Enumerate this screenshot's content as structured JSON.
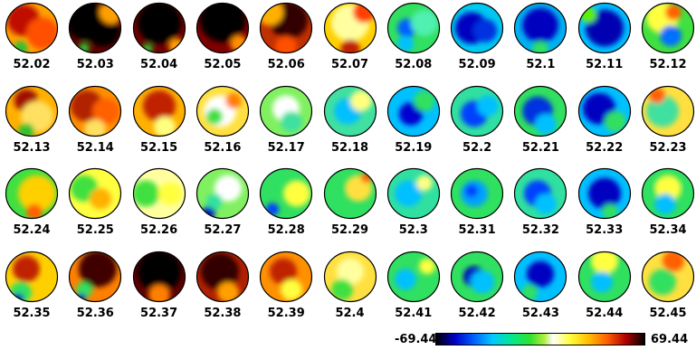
{
  "rows": [
    [
      "52.02",
      "52.03",
      "52.04",
      "52.05",
      "52.06",
      "52.07",
      "52.08",
      "52.09",
      "52.1",
      "52.11",
      "52.12"
    ],
    [
      "52.13",
      "52.14",
      "52.15",
      "52.16",
      "52.17",
      "52.18",
      "52.19",
      "52.2",
      "52.21",
      "52.22",
      "52.23"
    ],
    [
      "52.24",
      "52.25",
      "52.26",
      "52.27",
      "52.28",
      "52.29",
      "52.3",
      "52.31",
      "52.32",
      "52.33",
      "52.34"
    ],
    [
      "52.35",
      "52.36",
      "52.37",
      "52.38",
      "52.39",
      "52.4",
      "52.41",
      "52.42",
      "52.43",
      "52.44",
      "52.45"
    ]
  ],
  "maps": [
    [
      {
        "bg": "#ffa000",
        "b": [
          [
            "#c01000",
            0.35,
            0.35,
            0.3
          ],
          [
            "#ff5000",
            0.7,
            0.6,
            0.3
          ],
          [
            "#30c030",
            0.3,
            0.88,
            0.13
          ]
        ]
      },
      {
        "bg": "#600000",
        "b": [
          [
            "#000000",
            0.35,
            0.35,
            0.38
          ],
          [
            "#000000",
            0.65,
            0.55,
            0.3
          ],
          [
            "#ffa000",
            0.8,
            0.2,
            0.22
          ],
          [
            "#30c030",
            0.3,
            0.88,
            0.1
          ]
        ]
      },
      {
        "bg": "#700000",
        "b": [
          [
            "#000000",
            0.5,
            0.4,
            0.4
          ],
          [
            "#ffa000",
            0.82,
            0.85,
            0.15
          ],
          [
            "#30c030",
            0.28,
            0.9,
            0.1
          ]
        ]
      },
      {
        "bg": "#800000",
        "b": [
          [
            "#000000",
            0.5,
            0.35,
            0.42
          ],
          [
            "#ff9000",
            0.8,
            0.8,
            0.16
          ]
        ]
      },
      {
        "bg": "#c03000",
        "b": [
          [
            "#300000",
            0.55,
            0.35,
            0.35
          ],
          [
            "#ffb000",
            0.2,
            0.2,
            0.25
          ],
          [
            "#ff5000",
            0.5,
            0.85,
            0.2
          ]
        ]
      },
      {
        "bg": "#ffd000",
        "b": [
          [
            "#ffffa0",
            0.5,
            0.4,
            0.35
          ],
          [
            "#c02000",
            0.5,
            0.9,
            0.18
          ],
          [
            "#ff4000",
            0.75,
            0.2,
            0.2
          ]
        ]
      },
      {
        "bg": "#30e060",
        "b": [
          [
            "#0060ff",
            0.38,
            0.5,
            0.18
          ],
          [
            "#50f0b0",
            0.7,
            0.4,
            0.25
          ],
          [
            "#00c0ff",
            0.35,
            0.8,
            0.15
          ]
        ]
      },
      {
        "bg": "#00c8f0",
        "b": [
          [
            "#0000c0",
            0.4,
            0.5,
            0.3
          ],
          [
            "#0030e0",
            0.65,
            0.55,
            0.22
          ]
        ]
      },
      {
        "bg": "#00b0f0",
        "b": [
          [
            "#0000c0",
            0.5,
            0.45,
            0.33
          ],
          [
            "#30e060",
            0.5,
            0.9,
            0.15
          ]
        ]
      },
      {
        "bg": "#00c0ff",
        "b": [
          [
            "#0000b0",
            0.5,
            0.5,
            0.35
          ],
          [
            "#60f000",
            0.2,
            0.25,
            0.15
          ]
        ]
      },
      {
        "bg": "#40e040",
        "b": [
          [
            "#ffff40",
            0.4,
            0.3,
            0.3
          ],
          [
            "#ff6000",
            0.6,
            0.2,
            0.15
          ],
          [
            "#0070ff",
            0.55,
            0.65,
            0.2
          ]
        ]
      }
    ],
    [
      {
        "bg": "#ffb000",
        "b": [
          [
            "#a01000",
            0.4,
            0.3,
            0.22
          ],
          [
            "#ffe060",
            0.6,
            0.6,
            0.3
          ],
          [
            "#30c030",
            0.4,
            0.88,
            0.15
          ]
        ]
      },
      {
        "bg": "#ff9000",
        "b": [
          [
            "#b02000",
            0.35,
            0.4,
            0.3
          ],
          [
            "#ff6000",
            0.7,
            0.5,
            0.25
          ],
          [
            "#ffe060",
            0.5,
            0.85,
            0.2
          ]
        ]
      },
      {
        "bg": "#ffb000",
        "b": [
          [
            "#c02000",
            0.5,
            0.4,
            0.3
          ],
          [
            "#ffff80",
            0.6,
            0.8,
            0.2
          ]
        ]
      },
      {
        "bg": "#ffe040",
        "b": [
          [
            "#ffffff",
            0.45,
            0.5,
            0.3
          ],
          [
            "#40e040",
            0.35,
            0.6,
            0.15
          ],
          [
            "#ff8000",
            0.7,
            0.3,
            0.15
          ]
        ]
      },
      {
        "bg": "#80f060",
        "b": [
          [
            "#ffffff",
            0.5,
            0.45,
            0.25
          ],
          [
            "#40e0a0",
            0.6,
            0.7,
            0.2
          ]
        ]
      },
      {
        "bg": "#40e0a0",
        "b": [
          [
            "#00c0ff",
            0.45,
            0.5,
            0.25
          ],
          [
            "#ffff80",
            0.7,
            0.3,
            0.2
          ]
        ]
      },
      {
        "bg": "#00c0ff",
        "b": [
          [
            "#0000d0",
            0.45,
            0.55,
            0.22
          ],
          [
            "#30e060",
            0.7,
            0.3,
            0.2
          ]
        ]
      },
      {
        "bg": "#30e0a0",
        "b": [
          [
            "#0040ff",
            0.45,
            0.55,
            0.25
          ],
          [
            "#00c0ff",
            0.7,
            0.4,
            0.2
          ]
        ]
      },
      {
        "bg": "#30e060",
        "b": [
          [
            "#0030e0",
            0.45,
            0.5,
            0.28
          ],
          [
            "#00c0ff",
            0.6,
            0.75,
            0.2
          ]
        ]
      },
      {
        "bg": "#00c0ff",
        "b": [
          [
            "#0000c0",
            0.4,
            0.45,
            0.3
          ],
          [
            "#30e060",
            0.7,
            0.7,
            0.2
          ]
        ]
      },
      {
        "bg": "#ffe040",
        "b": [
          [
            "#40e0a0",
            0.4,
            0.5,
            0.3
          ],
          [
            "#ff6000",
            0.3,
            0.2,
            0.15
          ]
        ]
      }
    ],
    [
      {
        "bg": "#40e040",
        "b": [
          [
            "#ffd000",
            0.6,
            0.5,
            0.35
          ],
          [
            "#ff6000",
            0.55,
            0.85,
            0.15
          ]
        ]
      },
      {
        "bg": "#ffff40",
        "b": [
          [
            "#40e040",
            0.3,
            0.4,
            0.25
          ],
          [
            "#ffb000",
            0.6,
            0.6,
            0.2
          ]
        ]
      },
      {
        "bg": "#ffffa0",
        "b": [
          [
            "#40e040",
            0.25,
            0.5,
            0.25
          ],
          [
            "#ffff40",
            0.7,
            0.5,
            0.22
          ]
        ]
      },
      {
        "bg": "#80f060",
        "b": [
          [
            "#ffffff",
            0.6,
            0.4,
            0.25
          ],
          [
            "#0000c0",
            0.25,
            0.85,
            0.12
          ],
          [
            "#30e0a0",
            0.35,
            0.65,
            0.15
          ]
        ]
      },
      {
        "bg": "#30e060",
        "b": [
          [
            "#ffff40",
            0.7,
            0.5,
            0.25
          ],
          [
            "#0040ff",
            0.25,
            0.8,
            0.12
          ]
        ]
      },
      {
        "bg": "#30e060",
        "b": [
          [
            "#ffe040",
            0.65,
            0.4,
            0.25
          ],
          [
            "#ff6000",
            0.8,
            0.2,
            0.1
          ]
        ]
      },
      {
        "bg": "#30e0a0",
        "b": [
          [
            "#00c0ff",
            0.4,
            0.5,
            0.25
          ],
          [
            "#ffff80",
            0.7,
            0.3,
            0.15
          ]
        ]
      },
      {
        "bg": "#30e060",
        "b": [
          [
            "#00a0ff",
            0.45,
            0.5,
            0.25
          ],
          [
            "#0040ff",
            0.4,
            0.45,
            0.12
          ]
        ]
      },
      {
        "bg": "#30e0a0",
        "b": [
          [
            "#0040ff",
            0.45,
            0.5,
            0.25
          ],
          [
            "#00c0ff",
            0.6,
            0.7,
            0.2
          ]
        ]
      },
      {
        "bg": "#00c0ff",
        "b": [
          [
            "#0000c0",
            0.5,
            0.5,
            0.3
          ],
          [
            "#30e060",
            0.6,
            0.85,
            0.15
          ]
        ]
      },
      {
        "bg": "#30e060",
        "b": [
          [
            "#ffff40",
            0.5,
            0.4,
            0.25
          ],
          [
            "#00c0ff",
            0.45,
            0.7,
            0.2
          ]
        ]
      }
    ],
    [
      {
        "bg": "#ffd000",
        "b": [
          [
            "#c02000",
            0.4,
            0.35,
            0.25
          ],
          [
            "#30e060",
            0.3,
            0.8,
            0.2
          ],
          [
            "#0000c0",
            0.25,
            0.92,
            0.1
          ]
        ]
      },
      {
        "bg": "#ff8000",
        "b": [
          [
            "#400000",
            0.55,
            0.35,
            0.35
          ],
          [
            "#30e060",
            0.3,
            0.75,
            0.15
          ],
          [
            "#0000c0",
            0.25,
            0.9,
            0.08
          ]
        ]
      },
      {
        "bg": "#600000",
        "b": [
          [
            "#000000",
            0.5,
            0.4,
            0.4
          ],
          [
            "#ff8000",
            0.5,
            0.85,
            0.2
          ]
        ]
      },
      {
        "bg": "#b02000",
        "b": [
          [
            "#300000",
            0.45,
            0.4,
            0.35
          ],
          [
            "#ffa000",
            0.6,
            0.8,
            0.2
          ]
        ]
      },
      {
        "bg": "#ff9000",
        "b": [
          [
            "#c02000",
            0.45,
            0.4,
            0.25
          ],
          [
            "#ffff40",
            0.6,
            0.75,
            0.2
          ]
        ]
      },
      {
        "bg": "#ffe040",
        "b": [
          [
            "#ffffa0",
            0.5,
            0.4,
            0.25
          ],
          [
            "#40e040",
            0.35,
            0.75,
            0.2
          ]
        ]
      },
      {
        "bg": "#30e060",
        "b": [
          [
            "#00c0ff",
            0.35,
            0.55,
            0.2
          ],
          [
            "#ffff40",
            0.75,
            0.3,
            0.15
          ]
        ]
      },
      {
        "bg": "#30e060",
        "b": [
          [
            "#0000c0",
            0.45,
            0.5,
            0.2
          ],
          [
            "#00c0ff",
            0.6,
            0.6,
            0.22
          ]
        ]
      },
      {
        "bg": "#00c0ff",
        "b": [
          [
            "#0000c0",
            0.5,
            0.45,
            0.25
          ],
          [
            "#30e060",
            0.3,
            0.8,
            0.15
          ]
        ]
      },
      {
        "bg": "#30e060",
        "b": [
          [
            "#ffff40",
            0.5,
            0.2,
            0.25
          ],
          [
            "#00c0ff",
            0.45,
            0.6,
            0.2
          ]
        ]
      },
      {
        "bg": "#ffe040",
        "b": [
          [
            "#ff6000",
            0.6,
            0.2,
            0.2
          ],
          [
            "#30e060",
            0.4,
            0.6,
            0.25
          ]
        ]
      }
    ]
  ],
  "colorbar": {
    "min": "-69.44",
    "max": "69.44"
  }
}
